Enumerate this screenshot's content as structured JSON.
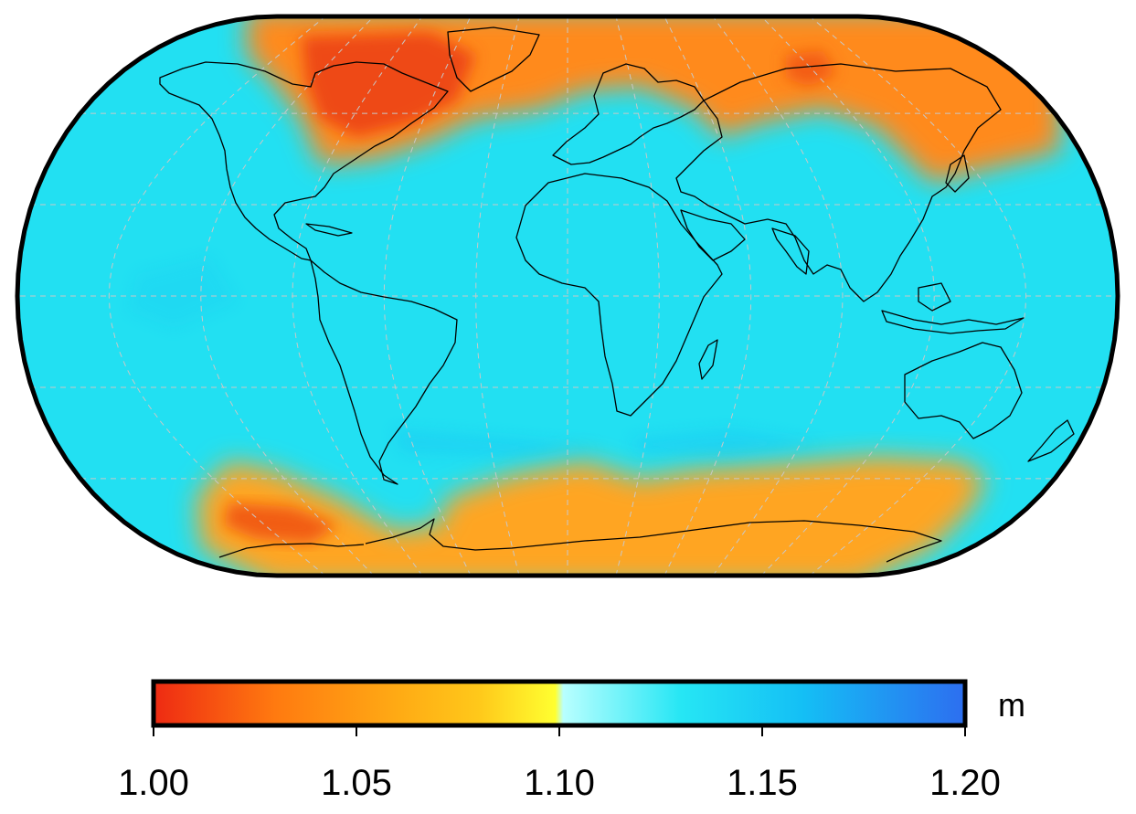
{
  "map": {
    "projection": "Robinson",
    "graticule": "dashed grey lines every 30 degrees",
    "field_colors": {
      "ocean_mid_latitudes": "#22e0f2",
      "north_high_latitudes": "#ff8a1a",
      "greenland_canada_min": "#ee4a12",
      "southern_ocean_band": "#ffa520",
      "land_outline": "#000000",
      "frame": "#000000",
      "graticule": "#c8c8c8"
    }
  },
  "colorbar": {
    "unit": "m",
    "ticks": [
      "1.00",
      "1.05",
      "1.10",
      "1.15",
      "1.20"
    ],
    "range": [
      1.0,
      1.2
    ],
    "stops": [
      {
        "value": 1.0,
        "color": "#ee2a12"
      },
      {
        "value": 1.03,
        "color": "#ff7a10"
      },
      {
        "value": 1.06,
        "color": "#ffaa14"
      },
      {
        "value": 1.08,
        "color": "#ffc81a"
      },
      {
        "value": 1.099,
        "color": "#ffff30"
      },
      {
        "value": 1.101,
        "color": "#b8ffff"
      },
      {
        "value": 1.13,
        "color": "#26e6f4"
      },
      {
        "value": 1.16,
        "color": "#14bff5"
      },
      {
        "value": 1.2,
        "color": "#2d6ef0"
      }
    ]
  }
}
